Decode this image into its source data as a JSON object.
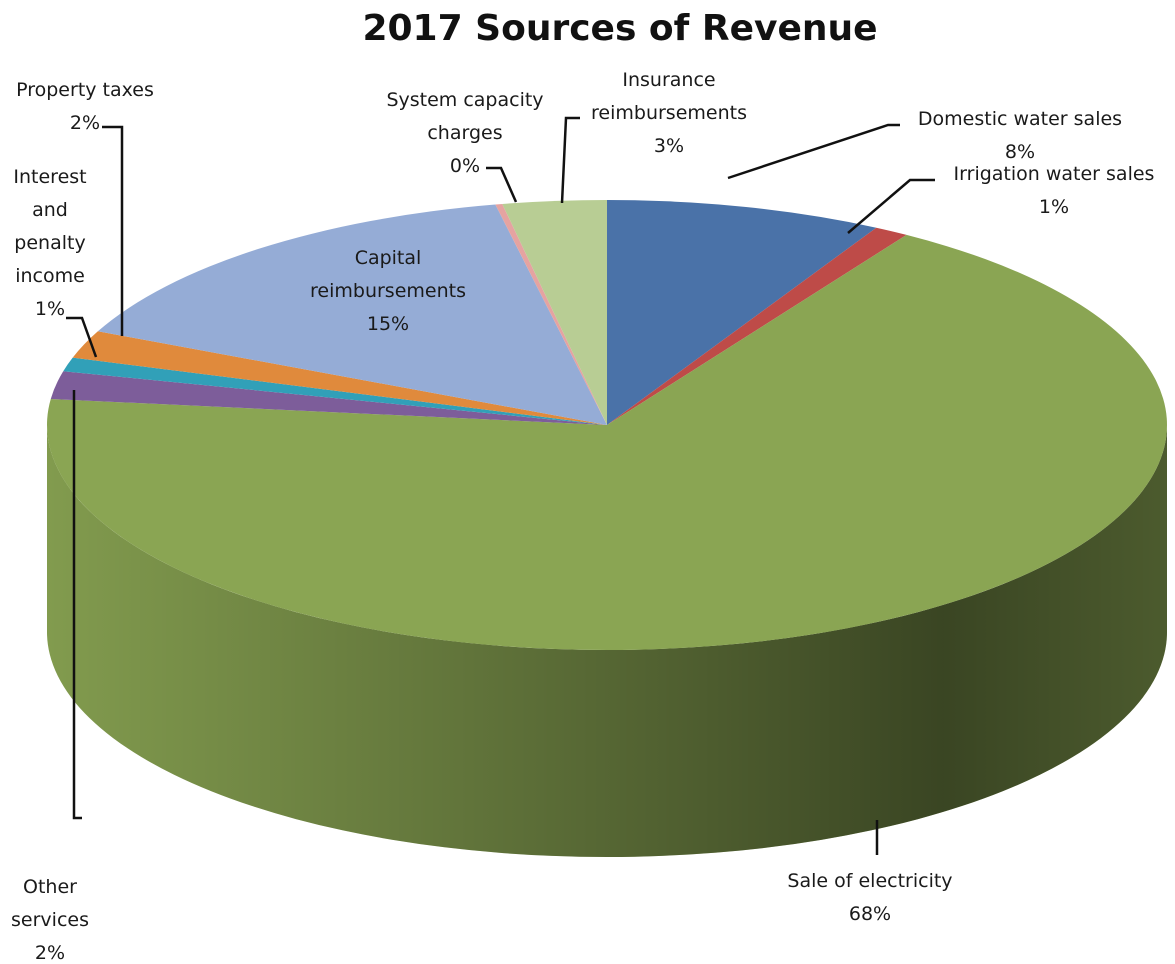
{
  "chart_data": {
    "type": "pie",
    "title": "2017 Sources of Revenue",
    "start_angle_deg": 90,
    "direction": "clockwise",
    "slices": [
      {
        "label": "Domestic water sales",
        "label_lines": [
          "Domestic water sales"
        ],
        "value": 8,
        "pct_text": "8%",
        "color": "#4a72a8"
      },
      {
        "label": "Irrigation water sales",
        "label_lines": [
          "Irrigation water sales"
        ],
        "value": 1,
        "pct_text": "1%",
        "color": "#be4b48"
      },
      {
        "label": "Sale of electricity",
        "label_lines": [
          "Sale of electricity"
        ],
        "value": 68,
        "pct_text": "68%",
        "color": "#8aa553"
      },
      {
        "label": "Other services",
        "label_lines": [
          "Other",
          "services"
        ],
        "value": 2,
        "pct_text": "2%",
        "color": "#7d5d9a"
      },
      {
        "label": "Interest and penalty income",
        "label_lines": [
          "Interest",
          "and",
          "penalty",
          "income"
        ],
        "value": 1,
        "pct_text": "1%",
        "color": "#31a0b8"
      },
      {
        "label": "Property taxes",
        "label_lines": [
          "Property taxes"
        ],
        "value": 2,
        "pct_text": "2%",
        "color": "#e08a3c"
      },
      {
        "label": "Capital reimbursements",
        "label_lines": [
          "Capital",
          "reimbursements"
        ],
        "value": 15,
        "pct_text": "15%",
        "color": "#95acd6"
      },
      {
        "label": "System capacity charges",
        "label_lines": [
          "System capacity",
          "charges"
        ],
        "value": 0.2,
        "pct_text": "0%",
        "color": "#e5a3a1"
      },
      {
        "label": "Insurance reimbursements",
        "label_lines": [
          "Insurance",
          "reimbursements"
        ],
        "value": 3,
        "pct_text": "3%",
        "color": "#b8cd94"
      }
    ],
    "label_style": "category name and percentage with leader lines",
    "legend": "none"
  }
}
